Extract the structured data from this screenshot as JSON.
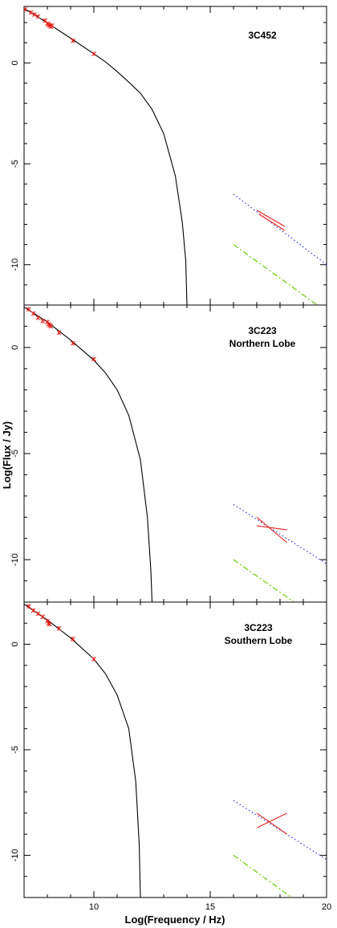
{
  "figure": {
    "xlabel": "Log(Frequency / Hz)",
    "ylabel": "Log(Flux / Jy)"
  },
  "chart_data": [
    {
      "type": "line",
      "panel_title": [
        "3C452"
      ],
      "xlim": [
        7,
        20
      ],
      "ylim": [
        -12,
        2.8
      ],
      "x_ticks": [
        10,
        15,
        20
      ],
      "y_ticks": [
        0,
        -5,
        -10
      ],
      "x_tick_labels_shown": false,
      "colors": {
        "model": "#000000",
        "data": "#e8231f",
        "ic_model": "#2a3ad8",
        "ssc_model": "#66cc00"
      },
      "series": [
        {
          "style": "solid",
          "color": "#000000",
          "points": [
            [
              7,
              2.7
            ],
            [
              8,
              1.98
            ],
            [
              9,
              1.23
            ],
            [
              10,
              0.45
            ],
            [
              10.5,
              0.05
            ],
            [
              11,
              -0.43
            ],
            [
              11.5,
              -0.95
            ],
            [
              12,
              -1.5
            ],
            [
              12.5,
              -2.3
            ],
            [
              13,
              -3.5
            ],
            [
              13.5,
              -5.6
            ],
            [
              13.8,
              -7.9
            ],
            [
              13.95,
              -9.8
            ],
            [
              14,
              -12
            ]
          ]
        },
        {
          "style": "scatter",
          "color": "#e8231f",
          "marker": "x",
          "points": [
            [
              7.05,
              2.65
            ],
            [
              7.3,
              2.5
            ],
            [
              7.45,
              2.4
            ],
            [
              7.6,
              2.3
            ],
            [
              7.9,
              2.1
            ],
            [
              8,
              1.95
            ],
            [
              8.05,
              1.9
            ],
            [
              8.1,
              1.85
            ],
            [
              8.15,
              1.8
            ],
            [
              8.2,
              1.85
            ],
            [
              9.1,
              1.1
            ],
            [
              10,
              0.45
            ]
          ]
        },
        {
          "style": "dotted",
          "color": "#2a3ad8",
          "points": [
            [
              16,
              -6.5
            ],
            [
              20,
              -10
            ]
          ]
        },
        {
          "style": "dashdot",
          "color": "#66cc00",
          "points": [
            [
              16,
              -9
            ],
            [
              19.6,
              -12
            ]
          ]
        },
        {
          "style": "solid",
          "color": "#e8231f",
          "points": [
            [
              17,
              -7.3
            ],
            [
              18.2,
              -8.1
            ]
          ]
        },
        {
          "style": "solid",
          "color": "#e8231f",
          "points": [
            [
              17.1,
              -7.5
            ],
            [
              18.2,
              -8.3
            ]
          ]
        }
      ]
    },
    {
      "type": "line",
      "panel_title": [
        "3C223",
        "Northern Lobe"
      ],
      "xlim": [
        7,
        20
      ],
      "ylim": [
        -12,
        2
      ],
      "x_ticks": [
        10,
        15,
        20
      ],
      "y_ticks": [
        0,
        -5,
        -10
      ],
      "x_tick_labels_shown": false,
      "colors": {
        "model": "#000000",
        "data": "#e8231f",
        "ic_model": "#2a3ad8",
        "ssc_model": "#66cc00"
      },
      "series": [
        {
          "style": "solid",
          "color": "#000000",
          "points": [
            [
              7,
              1.9
            ],
            [
              8,
              1.2
            ],
            [
              9,
              0.35
            ],
            [
              10,
              -0.6
            ],
            [
              10.5,
              -1.2
            ],
            [
              11,
              -2.0
            ],
            [
              11.5,
              -3.2
            ],
            [
              12,
              -5.3
            ],
            [
              12.3,
              -8
            ],
            [
              12.45,
              -10.5
            ],
            [
              12.5,
              -12
            ]
          ]
        },
        {
          "style": "scatter",
          "color": "#e8231f",
          "marker": "x",
          "points": [
            [
              7.2,
              1.8
            ],
            [
              7.4,
              1.6
            ],
            [
              7.6,
              1.4
            ],
            [
              7.8,
              1.25
            ],
            [
              8,
              1.2
            ],
            [
              8.05,
              1.1
            ],
            [
              8.1,
              1.05
            ],
            [
              8.15,
              1.0
            ],
            [
              8.5,
              0.7
            ],
            [
              9.1,
              0.2
            ],
            [
              10,
              -0.55
            ]
          ]
        },
        {
          "style": "dotted",
          "color": "#2a3ad8",
          "points": [
            [
              16,
              -7.4
            ],
            [
              20,
              -10.2
            ]
          ]
        },
        {
          "style": "dashdot",
          "color": "#66cc00",
          "points": [
            [
              16,
              -10
            ],
            [
              18.6,
              -12
            ]
          ]
        },
        {
          "style": "solid",
          "color": "#e8231f",
          "points": [
            [
              17,
              -8.4
            ],
            [
              18.3,
              -8.6
            ]
          ]
        },
        {
          "style": "solid",
          "color": "#e8231f",
          "points": [
            [
              17,
              -8.0
            ],
            [
              18.3,
              -9.2
            ]
          ]
        }
      ]
    },
    {
      "type": "line",
      "panel_title": [
        "3C223",
        "Southern Lobe"
      ],
      "xlim": [
        7,
        20
      ],
      "ylim": [
        -12,
        2
      ],
      "x_ticks": [
        10,
        15,
        20
      ],
      "y_ticks": [
        0,
        -5,
        -10
      ],
      "x_tick_labels_shown": true,
      "colors": {
        "model": "#000000",
        "data": "#e8231f",
        "ic_model": "#2a3ad8",
        "ssc_model": "#66cc00"
      },
      "series": [
        {
          "style": "solid",
          "color": "#000000",
          "points": [
            [
              7,
              1.9
            ],
            [
              8,
              1.15
            ],
            [
              9,
              0.3
            ],
            [
              10,
              -0.7
            ],
            [
              10.5,
              -1.4
            ],
            [
              11,
              -2.4
            ],
            [
              11.5,
              -4
            ],
            [
              11.8,
              -6.5
            ],
            [
              11.95,
              -9.5
            ],
            [
              12,
              -12
            ]
          ]
        },
        {
          "style": "scatter",
          "color": "#e8231f",
          "marker": "x",
          "points": [
            [
              7.2,
              1.8
            ],
            [
              7.4,
              1.6
            ],
            [
              7.6,
              1.45
            ],
            [
              7.8,
              1.3
            ],
            [
              8,
              1.1
            ],
            [
              8.05,
              1.0
            ],
            [
              8.1,
              0.95
            ],
            [
              8.5,
              0.75
            ],
            [
              9.1,
              0.25
            ],
            [
              10,
              -0.7
            ]
          ]
        },
        {
          "style": "dotted",
          "color": "#2a3ad8",
          "points": [
            [
              16,
              -7.4
            ],
            [
              20,
              -10.2
            ]
          ]
        },
        {
          "style": "dashdot",
          "color": "#66cc00",
          "points": [
            [
              16,
              -10
            ],
            [
              18.5,
              -12
            ]
          ]
        },
        {
          "style": "solid",
          "color": "#e8231f",
          "points": [
            [
              17,
              -8.7
            ],
            [
              18.3,
              -8.0
            ]
          ]
        },
        {
          "style": "solid",
          "color": "#e8231f",
          "points": [
            [
              17,
              -8.0
            ],
            [
              18.3,
              -9.0
            ]
          ]
        }
      ]
    }
  ]
}
